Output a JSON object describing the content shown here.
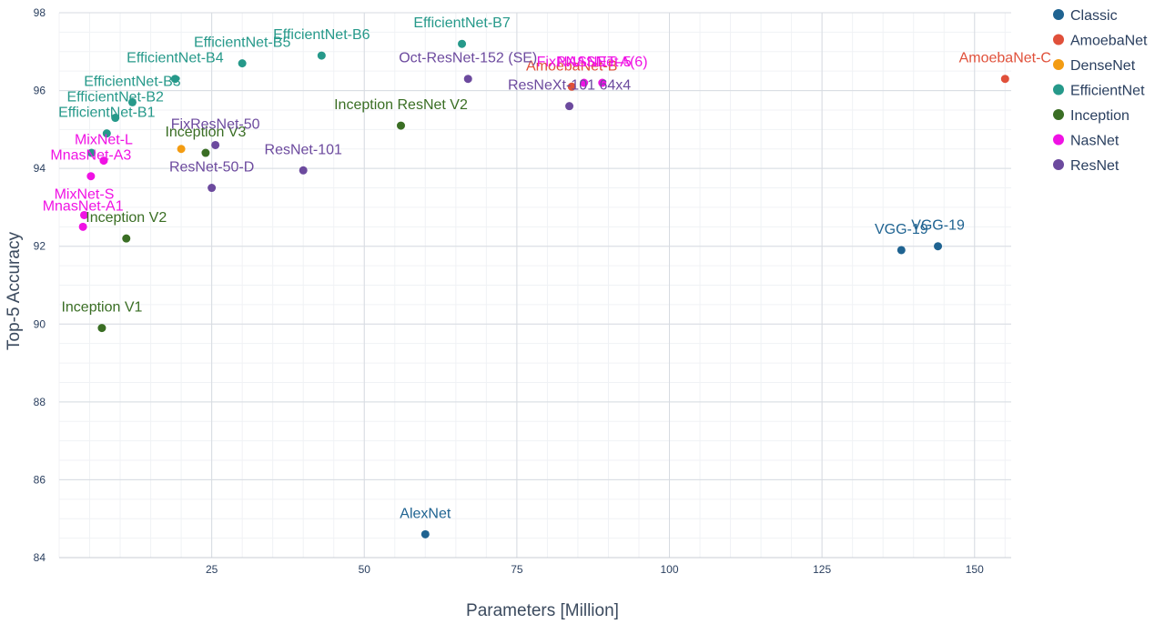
{
  "chart_data": {
    "type": "scatter",
    "title": "",
    "xlabel": "Parameters [Million]",
    "ylabel": "Top-5 Accuracy",
    "xlim": [
      0,
      156
    ],
    "ylim": [
      84,
      98
    ],
    "xticks": [
      25,
      50,
      75,
      100,
      125,
      150
    ],
    "yticks": [
      84,
      86,
      88,
      90,
      92,
      94,
      96,
      98
    ],
    "grid": true,
    "legend_position": "top-right",
    "series": [
      {
        "name": "Classic",
        "color": "#1f6391",
        "points": [
          {
            "label": "AlexNet",
            "x": 60,
            "y": 84.6
          },
          {
            "label": "VGG-19",
            "x": 144,
            "y": 92.0
          },
          {
            "label": "VGG-19",
            "x": 138,
            "y": 91.9
          }
        ]
      },
      {
        "name": "AmoebaNet",
        "color": "#e0503a",
        "points": [
          {
            "label": "AmoebaNet-C",
            "x": 155,
            "y": 96.3
          },
          {
            "label": "AmoebaNet-B",
            "x": 84,
            "y": 96.1
          }
        ]
      },
      {
        "name": "DenseNet",
        "color": "#f39c12",
        "points": [
          {
            "label": "",
            "x": 20,
            "y": 94.5
          }
        ]
      },
      {
        "name": "EfficientNet",
        "color": "#26998a",
        "points": [
          {
            "label": "EfficientNet-B7",
            "x": 66,
            "y": 97.2
          },
          {
            "label": "EfficientNet-B6",
            "x": 43,
            "y": 96.9
          },
          {
            "label": "EfficientNet-B5",
            "x": 30,
            "y": 96.7
          },
          {
            "label": "EfficientNet-B4",
            "x": 19,
            "y": 96.3
          },
          {
            "label": "EfficientNet-B3",
            "x": 12,
            "y": 95.7
          },
          {
            "label": "EfficientNet-B2",
            "x": 9.2,
            "y": 95.3
          },
          {
            "label": "EfficientNet-B1",
            "x": 7.8,
            "y": 94.9
          },
          {
            "label": "",
            "x": 5.3,
            "y": 94.4
          }
        ]
      },
      {
        "name": "Inception",
        "color": "#3a6e24",
        "points": [
          {
            "label": "Inception ResNet V2",
            "x": 56,
            "y": 95.1
          },
          {
            "label": "Inception V3",
            "x": 24,
            "y": 94.4
          },
          {
            "label": "Inception V2",
            "x": 11,
            "y": 92.2
          },
          {
            "label": "Inception V1",
            "x": 7,
            "y": 89.9
          }
        ]
      },
      {
        "name": "NasNet",
        "color": "#f012e4",
        "points": [
          {
            "label": "NASNET-A(6)",
            "x": 89,
            "y": 96.2
          },
          {
            "label": "FixPNASNet-5",
            "x": 86,
            "y": 96.2
          },
          {
            "label": "MixNet-L",
            "x": 7.3,
            "y": 94.2
          },
          {
            "label": "MnasNet-A3",
            "x": 5.2,
            "y": 93.8
          },
          {
            "label": "MixNet-S",
            "x": 4.1,
            "y": 92.8
          },
          {
            "label": "MnasNet-A1",
            "x": 3.9,
            "y": 92.5
          }
        ]
      },
      {
        "name": "ResNet",
        "color": "#6c4a9e",
        "points": [
          {
            "label": "Oct-ResNet-152 (SE)",
            "x": 67,
            "y": 96.3
          },
          {
            "label": "ResNeXt-101 64x4",
            "x": 83.6,
            "y": 95.6
          },
          {
            "label": "FixResNet-50",
            "x": 25.6,
            "y": 94.6
          },
          {
            "label": "ResNet-101",
            "x": 40,
            "y": 93.95
          },
          {
            "label": "ResNet-50-D",
            "x": 25,
            "y": 93.5
          }
        ]
      }
    ]
  }
}
